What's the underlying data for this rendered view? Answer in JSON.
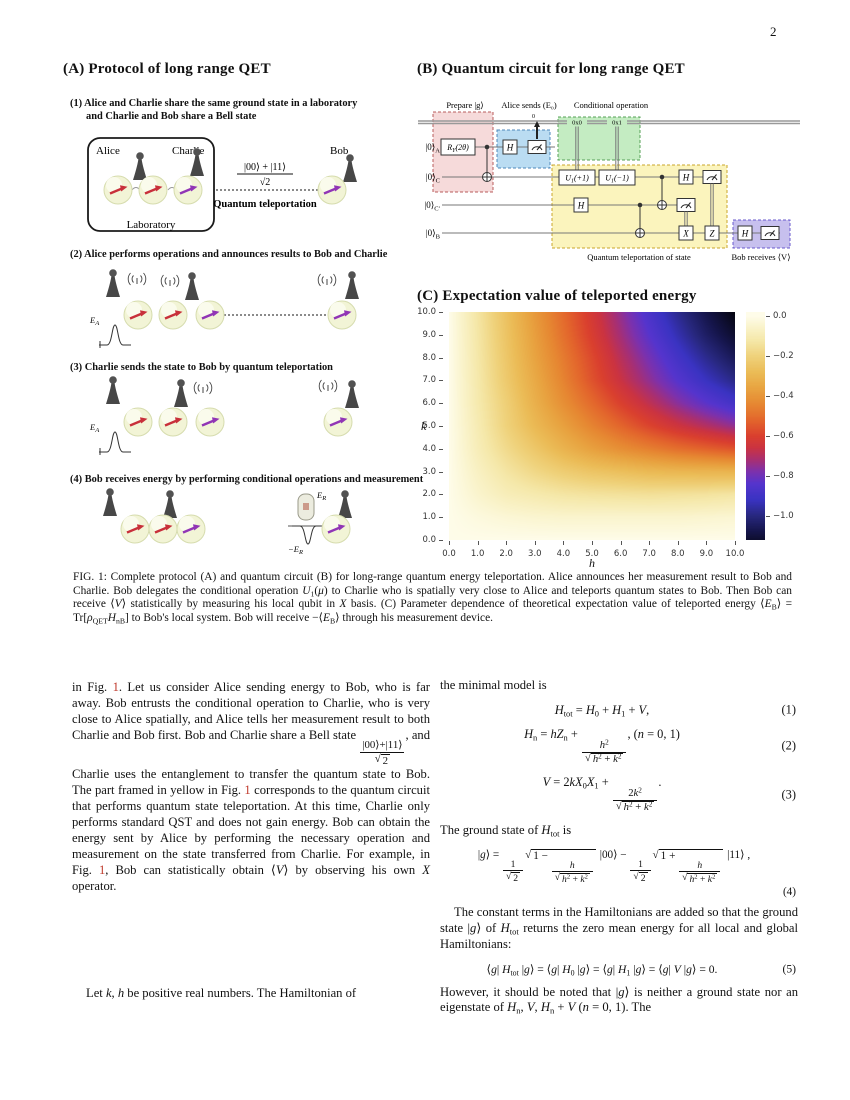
{
  "page_number": "2",
  "figureA": {
    "title": "(A) Protocol of long range QET",
    "steps": [
      {
        "label": "(1) Alice and Charlie share the same ground state in a laboratory",
        "label2": "and Charlie and Bob share a Bell state"
      },
      {
        "label": "(2) Alice performs operations and announces results to Bob and Charlie"
      },
      {
        "label": "(3) Charlie sends the state to Bob by quantum teleportation"
      },
      {
        "label": "(4) Bob receives energy by performing conditional operations and measurement"
      }
    ],
    "labels": {
      "alice": "Alice",
      "charlie": "Charlie",
      "bob": "Bob",
      "laboratory": "Laboratory",
      "bell_num": "|00⟩ + |11⟩",
      "bell_den": "√2",
      "qt_label": "Quantum teleportation",
      "ea_main": "E",
      "ea_sub": "A",
      "er_main": "E",
      "er_sub": "R",
      "mer_main": "−E",
      "mer_sub": "R"
    }
  },
  "figureB": {
    "title": "(B) Quantum circuit for long range QET",
    "region_labels": {
      "prepare": "Prepare |g⟩",
      "alice_sends": "Alice sends (E₀)",
      "conditional": "Conditional operation",
      "teleport": "Quantum teleportation of state",
      "bob_receives": "Bob receives ⟨V⟩"
    },
    "wire_labels": [
      {
        "ket": "|0⟩",
        "sub": "A"
      },
      {
        "ket": "|0⟩",
        "sub": "C"
      },
      {
        "ket": "|0⟩",
        "sub": "C′"
      },
      {
        "ket": "|0⟩",
        "sub": "B"
      }
    ],
    "gates": {
      "ry_main": "R",
      "ry_sub": "Y",
      "ry_arg": "(2θ)",
      "h": "H",
      "u1_main": "U",
      "u1_sub": "1",
      "u1p_arg": "(+1)",
      "u1m_arg": "(−1)",
      "x": "X",
      "z": "Z",
      "cond0": "0x0",
      "cond1": "0x1",
      "zero": "0"
    }
  },
  "figureC": {
    "title": "(C) Expectation value of teleported energy"
  },
  "chart_data": {
    "type": "heatmap",
    "title": "(C) Expectation value of teleported energy",
    "xlabel": "h",
    "ylabel": "k",
    "xlim": [
      0,
      10
    ],
    "ylim": [
      0,
      10
    ],
    "x_ticks": [
      "0.0",
      "1.0",
      "2.0",
      "3.0",
      "4.0",
      "5.0",
      "6.0",
      "7.0",
      "8.0",
      "9.0",
      "10.0"
    ],
    "y_ticks": [
      "0.0",
      "1.0",
      "2.0",
      "3.0",
      "4.0",
      "5.0",
      "6.0",
      "7.0",
      "8.0",
      "9.0",
      "10.0"
    ],
    "grid_h": [
      0,
      1,
      2,
      3,
      4,
      5,
      6,
      7,
      8,
      9,
      10
    ],
    "grid_k": [
      0,
      1,
      2,
      3,
      4,
      5,
      6,
      7,
      8,
      9,
      10
    ],
    "series_name": "⟨EB⟩ teleported energy (rows k = 0 … 10 bottom to top)",
    "values": [
      [
        0,
        0,
        0,
        0,
        0,
        0,
        0,
        0,
        0,
        0,
        0
      ],
      [
        0,
        -0.02,
        -0.035,
        -0.045,
        -0.05,
        -0.05,
        -0.05,
        -0.05,
        -0.05,
        -0.045,
        -0.04
      ],
      [
        0,
        -0.05,
        -0.09,
        -0.11,
        -0.13,
        -0.14,
        -0.145,
        -0.15,
        -0.145,
        -0.14,
        -0.13
      ],
      [
        0,
        -0.07,
        -0.13,
        -0.18,
        -0.22,
        -0.25,
        -0.27,
        -0.29,
        -0.3,
        -0.305,
        -0.31
      ],
      [
        0,
        -0.09,
        -0.17,
        -0.24,
        -0.31,
        -0.37,
        -0.42,
        -0.46,
        -0.5,
        -0.53,
        -0.56
      ],
      [
        0,
        -0.1,
        -0.2,
        -0.29,
        -0.37,
        -0.45,
        -0.52,
        -0.59,
        -0.65,
        -0.7,
        -0.75
      ],
      [
        0,
        -0.11,
        -0.21,
        -0.32,
        -0.42,
        -0.51,
        -0.6,
        -0.68,
        -0.76,
        -0.83,
        -0.89
      ],
      [
        0,
        -0.115,
        -0.23,
        -0.34,
        -0.45,
        -0.56,
        -0.66,
        -0.75,
        -0.84,
        -0.92,
        -0.99
      ],
      [
        0,
        -0.12,
        -0.24,
        -0.36,
        -0.47,
        -0.58,
        -0.69,
        -0.79,
        -0.89,
        -0.98,
        -1.06
      ],
      [
        0,
        -0.125,
        -0.25,
        -0.375,
        -0.495,
        -0.61,
        -0.725,
        -0.835,
        -0.94,
        -1.04,
        -1.12
      ],
      [
        0,
        -0.13,
        -0.26,
        -0.39,
        -0.51,
        -0.63,
        -0.75,
        -0.87,
        -0.98,
        -1.08,
        -1.17
      ]
    ],
    "colorbar_range": [
      0.02,
      -1.12
    ],
    "colorbar_ticks": [
      {
        "v": 0.0,
        "label": "0.0"
      },
      {
        "v": -0.2,
        "label": "−0.2"
      },
      {
        "v": -0.4,
        "label": "−0.4"
      },
      {
        "v": -0.6,
        "label": "−0.6"
      },
      {
        "v": -0.8,
        "label": "−0.8"
      },
      {
        "v": -1.0,
        "label": "−1.0"
      }
    ],
    "colormap": [
      {
        "v": 0.0,
        "c": "#fefce9"
      },
      {
        "v": -0.05,
        "c": "#faf4cd"
      },
      {
        "v": -0.12,
        "c": "#f5e8a9"
      },
      {
        "v": -0.2,
        "c": "#efd27b"
      },
      {
        "v": -0.28,
        "c": "#ebbc57"
      },
      {
        "v": -0.36,
        "c": "#e8a441"
      },
      {
        "v": -0.44,
        "c": "#e68832"
      },
      {
        "v": -0.52,
        "c": "#e3662c"
      },
      {
        "v": -0.6,
        "c": "#da402e"
      },
      {
        "v": -0.66,
        "c": "#cb3341"
      },
      {
        "v": -0.72,
        "c": "#a82f72"
      },
      {
        "v": -0.78,
        "c": "#7c31ad"
      },
      {
        "v": -0.84,
        "c": "#5534cd"
      },
      {
        "v": -0.92,
        "c": "#3a33c2"
      },
      {
        "v": -1.0,
        "c": "#28287f"
      },
      {
        "v": -1.08,
        "c": "#15154a"
      },
      {
        "v": -1.17,
        "c": "#060610"
      }
    ],
    "grid": "off",
    "legend_position": "right-colorbar"
  },
  "caption": {
    "tokens": [
      "FIG. 1: Complete protocol (A) and quantum circuit (B) for long-range quantum energy teleportation.  Alice announces her measurement result to Bob and Charlie.  Bob delegates the conditional operation ",
      {
        "i": "U"
      },
      {
        "s": "1"
      },
      "(",
      {
        "i": "μ"
      },
      ") to Charlie who is spatially very close to Alice and teleports quantum states to Bob.  Then Bob can receive ⟨",
      {
        "i": "V"
      },
      "⟩ statistically by measuring his local qubit in ",
      {
        "i": "X"
      },
      " basis. (C) Parameter dependence of theoretical expectation value of teleported energy ⟨",
      {
        "i": "E"
      },
      {
        "s": "B"
      },
      "⟩ = Tr[",
      {
        "i": "ρ"
      },
      {
        "s": "QET"
      },
      {
        "i": "H"
      },
      {
        "s": "nB"
      },
      "] to Bob's local system. Bob will receive −⟨",
      {
        "i": "E"
      },
      {
        "s": "B"
      },
      "⟩ through his measurement device."
    ]
  },
  "body": {
    "left_para1": [
      "in Fig. ",
      {
        "red": "1"
      },
      ".  Let us consider Alice sending energy to Bob, who is far away.  Bob entrusts the conditional operation to Charlie, who is very close to Alice spatially, and Alice tells her measurement result to both Charlie and Bob first.  Bob and Charlie share a Bell state ",
      {
        "frac": [
          [
            "|00⟩+|11⟩"
          ],
          [
            {
              "sqrt": [
                "2"
              ]
            }
          ]
        ]
      },
      ", and Charlie uses the entanglement to transfer the quantum state to Bob.  The part framed in yellow in Fig. ",
      {
        "red": "1"
      },
      " corresponds to the quantum circuit that performs quantum state teleportation.  At this time, Charlie only performs standard QST and does not gain energy.  Bob can obtain the energy sent by Alice by performing the necessary operation and measurement on the state transferred from Charlie.  For example, in Fig. ",
      {
        "red": "1"
      },
      ", Bob can statistically obtain ⟨",
      {
        "i": "V"
      },
      "⟩ by observing his own ",
      {
        "i": "X"
      },
      " operator."
    ],
    "left_para2": [
      "Let ",
      {
        "i": "k"
      },
      ", ",
      {
        "i": "h"
      },
      " be positive real numbers.  The Hamiltonian of"
    ],
    "right_intro": [
      "the minimal model is"
    ],
    "eq1": {
      "tokens": [
        {
          "i": "H"
        },
        {
          "s": "tot"
        },
        " = ",
        {
          "i": "H"
        },
        {
          "s": "0"
        },
        " + ",
        {
          "i": "H"
        },
        {
          "s": "1"
        },
        " + ",
        {
          "i": "V"
        },
        ","
      ],
      "number": "(1)"
    },
    "eq2": {
      "tokens": [
        {
          "i": "H"
        },
        {
          "s": "n"
        },
        " = ",
        {
          "i": "hZ"
        },
        {
          "s": "n"
        },
        " + ",
        {
          "frac": [
            [
              {
                "i": "h"
              },
              {
                "u": "2"
              }
            ],
            [
              {
                "sqrt": [
                  {
                    "i": "h"
                  },
                  {
                    "u": "2"
                  },
                  " + ",
                  {
                    "i": "k"
                  },
                  {
                    "u": "2"
                  }
                ]
              }
            ]
          ]
        },
        ",  (",
        {
          "i": "n"
        },
        " = 0, 1)"
      ],
      "number": "(2)"
    },
    "eq3": {
      "tokens": [
        {
          "i": "V"
        },
        " = 2",
        {
          "i": "kX"
        },
        {
          "s": "0"
        },
        {
          "i": "X"
        },
        {
          "s": "1"
        },
        " + ",
        {
          "frac": [
            [
              "2",
              {
                "i": "k"
              },
              {
                "u": "2"
              }
            ],
            [
              {
                "sqrt": [
                  {
                    "i": "h"
                  },
                  {
                    "u": "2"
                  },
                  " + ",
                  {
                    "i": "k"
                  },
                  {
                    "u": "2"
                  }
                ]
              }
            ]
          ]
        },
        "."
      ],
      "number": "(3)"
    },
    "right_ground": [
      "The ground state of ",
      {
        "i": "H"
      },
      {
        "s": "tot"
      },
      " is"
    ],
    "eq4": {
      "tokens": [
        "|",
        {
          "i": "g"
        },
        "⟩ = ",
        {
          "frac": [
            [
              "1"
            ],
            [
              {
                "sqrt": [
                  "2"
                ]
              }
            ]
          ]
        },
        {
          "sqrt": [
            "1 − ",
            {
              "frac": [
                [
                  {
                    "i": "h"
                  }
                ],
                [
                  {
                    "sqrt": [
                      {
                        "i": "h"
                      },
                      {
                        "u": "2"
                      },
                      " + ",
                      {
                        "i": "k"
                      },
                      {
                        "u": "2"
                      }
                    ]
                  }
                ]
              ]
            }
          ]
        },
        " |00⟩ − ",
        {
          "frac": [
            [
              "1"
            ],
            [
              {
                "sqrt": [
                  "2"
                ]
              }
            ]
          ]
        },
        {
          "sqrt": [
            "1 + ",
            {
              "frac": [
                [
                  {
                    "i": "h"
                  }
                ],
                [
                  {
                    "sqrt": [
                      {
                        "i": "h"
                      },
                      {
                        "u": "2"
                      },
                      " + ",
                      {
                        "i": "k"
                      },
                      {
                        "u": "2"
                      }
                    ]
                  }
                ]
              ]
            }
          ]
        },
        " |11⟩ ,"
      ],
      "number": "(4)"
    },
    "right_const": [
      "The constant terms in the Hamiltonians are added so that the ground state |",
      {
        "i": "g"
      },
      "⟩ of ",
      {
        "i": "H"
      },
      {
        "s": "tot"
      },
      " returns the zero mean energy for all local and global Hamiltonians:"
    ],
    "eq5": {
      "tokens": [
        "⟨",
        {
          "i": "g"
        },
        "| ",
        {
          "i": "H"
        },
        {
          "s": "tot"
        },
        " |",
        {
          "i": "g"
        },
        "⟩ = ⟨",
        {
          "i": "g"
        },
        "| ",
        {
          "i": "H"
        },
        {
          "s": "0"
        },
        " |",
        {
          "i": "g"
        },
        "⟩ = ⟨",
        {
          "i": "g"
        },
        "| ",
        {
          "i": "H"
        },
        {
          "s": "1"
        },
        " |",
        {
          "i": "g"
        },
        "⟩ = ⟨",
        {
          "i": "g"
        },
        "| ",
        {
          "i": "V"
        },
        " |",
        {
          "i": "g"
        },
        "⟩ = 0."
      ],
      "number": "(5)"
    },
    "right_however": [
      "However, it should be noted that |",
      {
        "i": "g"
      },
      "⟩ is neither a ground state nor an eigenstate of ",
      {
        "i": "H"
      },
      {
        "s": "n"
      },
      ", ",
      {
        "i": "V"
      },
      ", ",
      {
        "i": "H"
      },
      {
        "s": "n"
      },
      " + ",
      {
        "i": "V"
      },
      " (",
      {
        "i": "n"
      },
      " = 0, 1).  The"
    ]
  }
}
